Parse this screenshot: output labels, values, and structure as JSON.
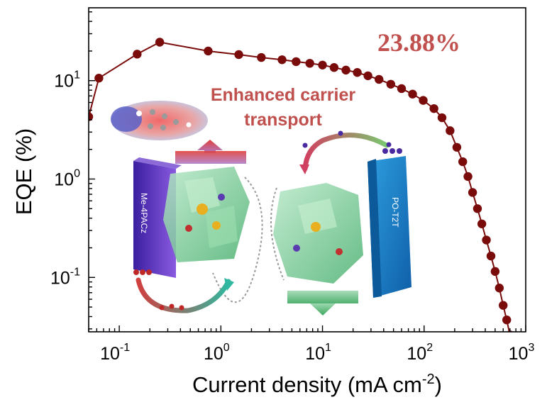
{
  "chart_data": {
    "type": "line",
    "xlabel": "Current density (mA cm",
    "xlabel_exp": "-2",
    "xlabel_close": ")",
    "ylabel": "EQE (%)",
    "xscale": "log",
    "yscale": "log",
    "xlim": [
      0.05,
      1000
    ],
    "ylim": [
      0.028,
      55
    ],
    "x_ticks": [
      {
        "base": "10",
        "exp": "-1",
        "value": 0.1
      },
      {
        "base": "10",
        "exp": "0",
        "value": 1
      },
      {
        "base": "10",
        "exp": "1",
        "value": 10
      },
      {
        "base": "10",
        "exp": "2",
        "value": 100
      },
      {
        "base": "10",
        "exp": "3",
        "value": 1000
      }
    ],
    "y_ticks": [
      {
        "base": "10",
        "exp": "-1",
        "value": 0.1
      },
      {
        "base": "10",
        "exp": "0",
        "value": 1
      },
      {
        "base": "10",
        "exp": "1",
        "value": 10
      }
    ],
    "series": [
      {
        "color": "#7a0b0b",
        "points": [
          [
            0.05,
            4.3
          ],
          [
            0.063,
            10.6
          ],
          [
            0.15,
            18.6
          ],
          [
            0.25,
            24.6
          ],
          [
            0.75,
            20.0
          ],
          [
            1.5,
            18.4
          ],
          [
            2.5,
            17.2
          ],
          [
            4,
            16.3
          ],
          [
            5.5,
            15.6
          ],
          [
            7.5,
            15.0
          ],
          [
            10,
            14.4
          ],
          [
            13,
            13.6
          ],
          [
            17,
            12.8
          ],
          [
            22,
            12.1
          ],
          [
            28,
            11.2
          ],
          [
            36,
            10.3
          ],
          [
            47,
            9.2
          ],
          [
            60,
            8.3
          ],
          [
            77,
            7.3
          ],
          [
            98,
            6.3
          ],
          [
            125,
            5.2
          ],
          [
            150,
            4.2
          ],
          [
            180,
            3.1
          ],
          [
            210,
            2.1
          ],
          [
            240,
            1.5
          ],
          [
            270,
            1.06
          ],
          [
            300,
            0.73
          ],
          [
            335,
            0.5
          ],
          [
            370,
            0.35
          ],
          [
            410,
            0.24
          ],
          [
            455,
            0.165
          ],
          [
            500,
            0.115
          ],
          [
            550,
            0.078
          ],
          [
            600,
            0.052
          ],
          [
            650,
            0.037
          ],
          [
            700,
            0.026
          ]
        ]
      }
    ],
    "annotations": {
      "peak": "23.88%",
      "enhanced_line1": "Enhanced carrier",
      "enhanced_line2": "transport",
      "left_layer": "Me-4PACz",
      "right_layer": "PO-T2T"
    },
    "colors": {
      "series": "#7a0b0b",
      "annotation": "#c0504d",
      "left_layer": "#5a2fb8",
      "right_layer": "#1f86c8",
      "up_arrow": "#d9534f",
      "down_arrow": "#4cae6e"
    },
    "grid": false,
    "legend": "none"
  }
}
